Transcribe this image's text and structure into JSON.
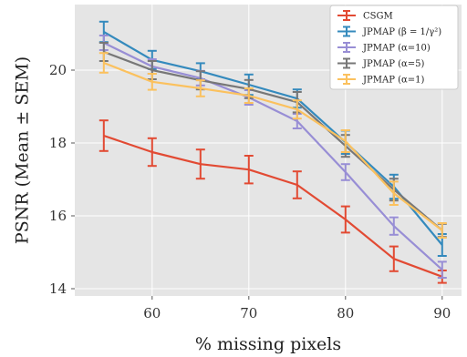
{
  "chart_data": {
    "type": "line",
    "title": "",
    "xlabel": "% missing pixels",
    "ylabel": "PSNR (Mean ± SEM)",
    "x": [
      55,
      60,
      65,
      70,
      75,
      80,
      85,
      90
    ],
    "xlim": [
      52,
      92
    ],
    "ylim": [
      13.8,
      21.8
    ],
    "xticks": [
      60,
      70,
      80,
      90
    ],
    "yticks": [
      14,
      16,
      18,
      20
    ],
    "grid": true,
    "legend_position": "top-right",
    "series": [
      {
        "name": "CSGM",
        "color": "#e24a33",
        "values": [
          18.2,
          17.75,
          17.42,
          17.27,
          16.85,
          15.9,
          14.82,
          14.33
        ],
        "errors": [
          0.42,
          0.38,
          0.4,
          0.38,
          0.37,
          0.36,
          0.34,
          0.17
        ]
      },
      {
        "name": "JPMAP (β = 1/γ²)",
        "color": "#348abd",
        "values": [
          21.05,
          20.28,
          19.97,
          19.6,
          19.22,
          18.02,
          16.8,
          15.2
        ],
        "errors": [
          0.28,
          0.25,
          0.22,
          0.28,
          0.25,
          0.32,
          0.33,
          0.3
        ]
      },
      {
        "name": "JPMAP (α=10)",
        "color": "#988ed5",
        "values": [
          20.75,
          20.1,
          19.78,
          19.25,
          18.6,
          17.2,
          15.72,
          14.52
        ],
        "errors": [
          0.2,
          0.2,
          0.2,
          0.2,
          0.2,
          0.22,
          0.24,
          0.22
        ]
      },
      {
        "name": "JPMAP (α=5)",
        "color": "#777777",
        "values": [
          20.5,
          20.0,
          19.72,
          19.48,
          19.12,
          17.92,
          16.72,
          15.6
        ],
        "errors": [
          0.25,
          0.25,
          0.25,
          0.25,
          0.28,
          0.3,
          0.3,
          0.18
        ]
      },
      {
        "name": "JPMAP (α=1)",
        "color": "#fbc15e",
        "values": [
          20.2,
          19.68,
          19.5,
          19.3,
          18.92,
          18.05,
          16.62,
          15.6
        ],
        "errors": [
          0.27,
          0.22,
          0.22,
          0.2,
          0.25,
          0.3,
          0.32,
          0.2
        ]
      }
    ]
  }
}
